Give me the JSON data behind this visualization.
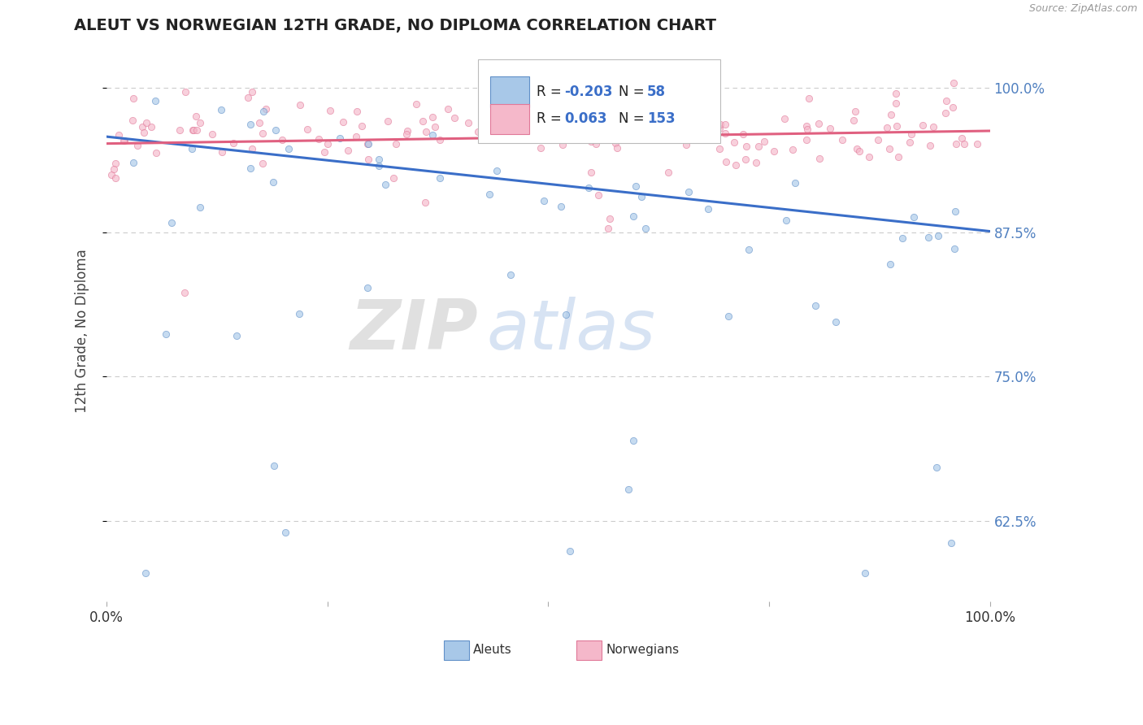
{
  "title": "ALEUT VS NORWEGIAN 12TH GRADE, NO DIPLOMA CORRELATION CHART",
  "source_text": "Source: ZipAtlas.com",
  "ylabel": "12th Grade, No Diploma",
  "xlim": [
    0.0,
    1.0
  ],
  "ylim": [
    0.555,
    1.025
  ],
  "yticks_right": [
    0.625,
    0.75,
    0.875,
    1.0
  ],
  "ytick_labels_right": [
    "62.5%",
    "75.0%",
    "87.5%",
    "100.0%"
  ],
  "xtick_vals": [
    0.0,
    0.25,
    0.5,
    0.75,
    1.0
  ],
  "xtick_labels": [
    "0.0%",
    "",
    "",
    "",
    "100.0%"
  ],
  "aleut_color": "#a8c8e8",
  "norwegian_color": "#f5b8ca",
  "aleut_edge_color": "#6090c8",
  "norwegian_edge_color": "#e07898",
  "aleut_line_color": "#3a6ec8",
  "norwegian_line_color": "#e06080",
  "aleut_R": -0.203,
  "aleut_N": 58,
  "norwegian_R": 0.063,
  "norwegian_N": 153,
  "legend_aleut_label": "Aleuts",
  "legend_norwegian_label": "Norwegians",
  "watermark_zip": "ZIP",
  "watermark_atlas": "atlas",
  "background_color": "#ffffff",
  "grid_color": "#cccccc",
  "right_axis_color": "#5080c0",
  "title_color": "#222222",
  "aleut_trend_y0": 0.958,
  "aleut_trend_y1": 0.876,
  "norwegian_trend_y0": 0.952,
  "norwegian_trend_y1": 0.963,
  "dot_size": 35,
  "dot_alpha": 0.65
}
